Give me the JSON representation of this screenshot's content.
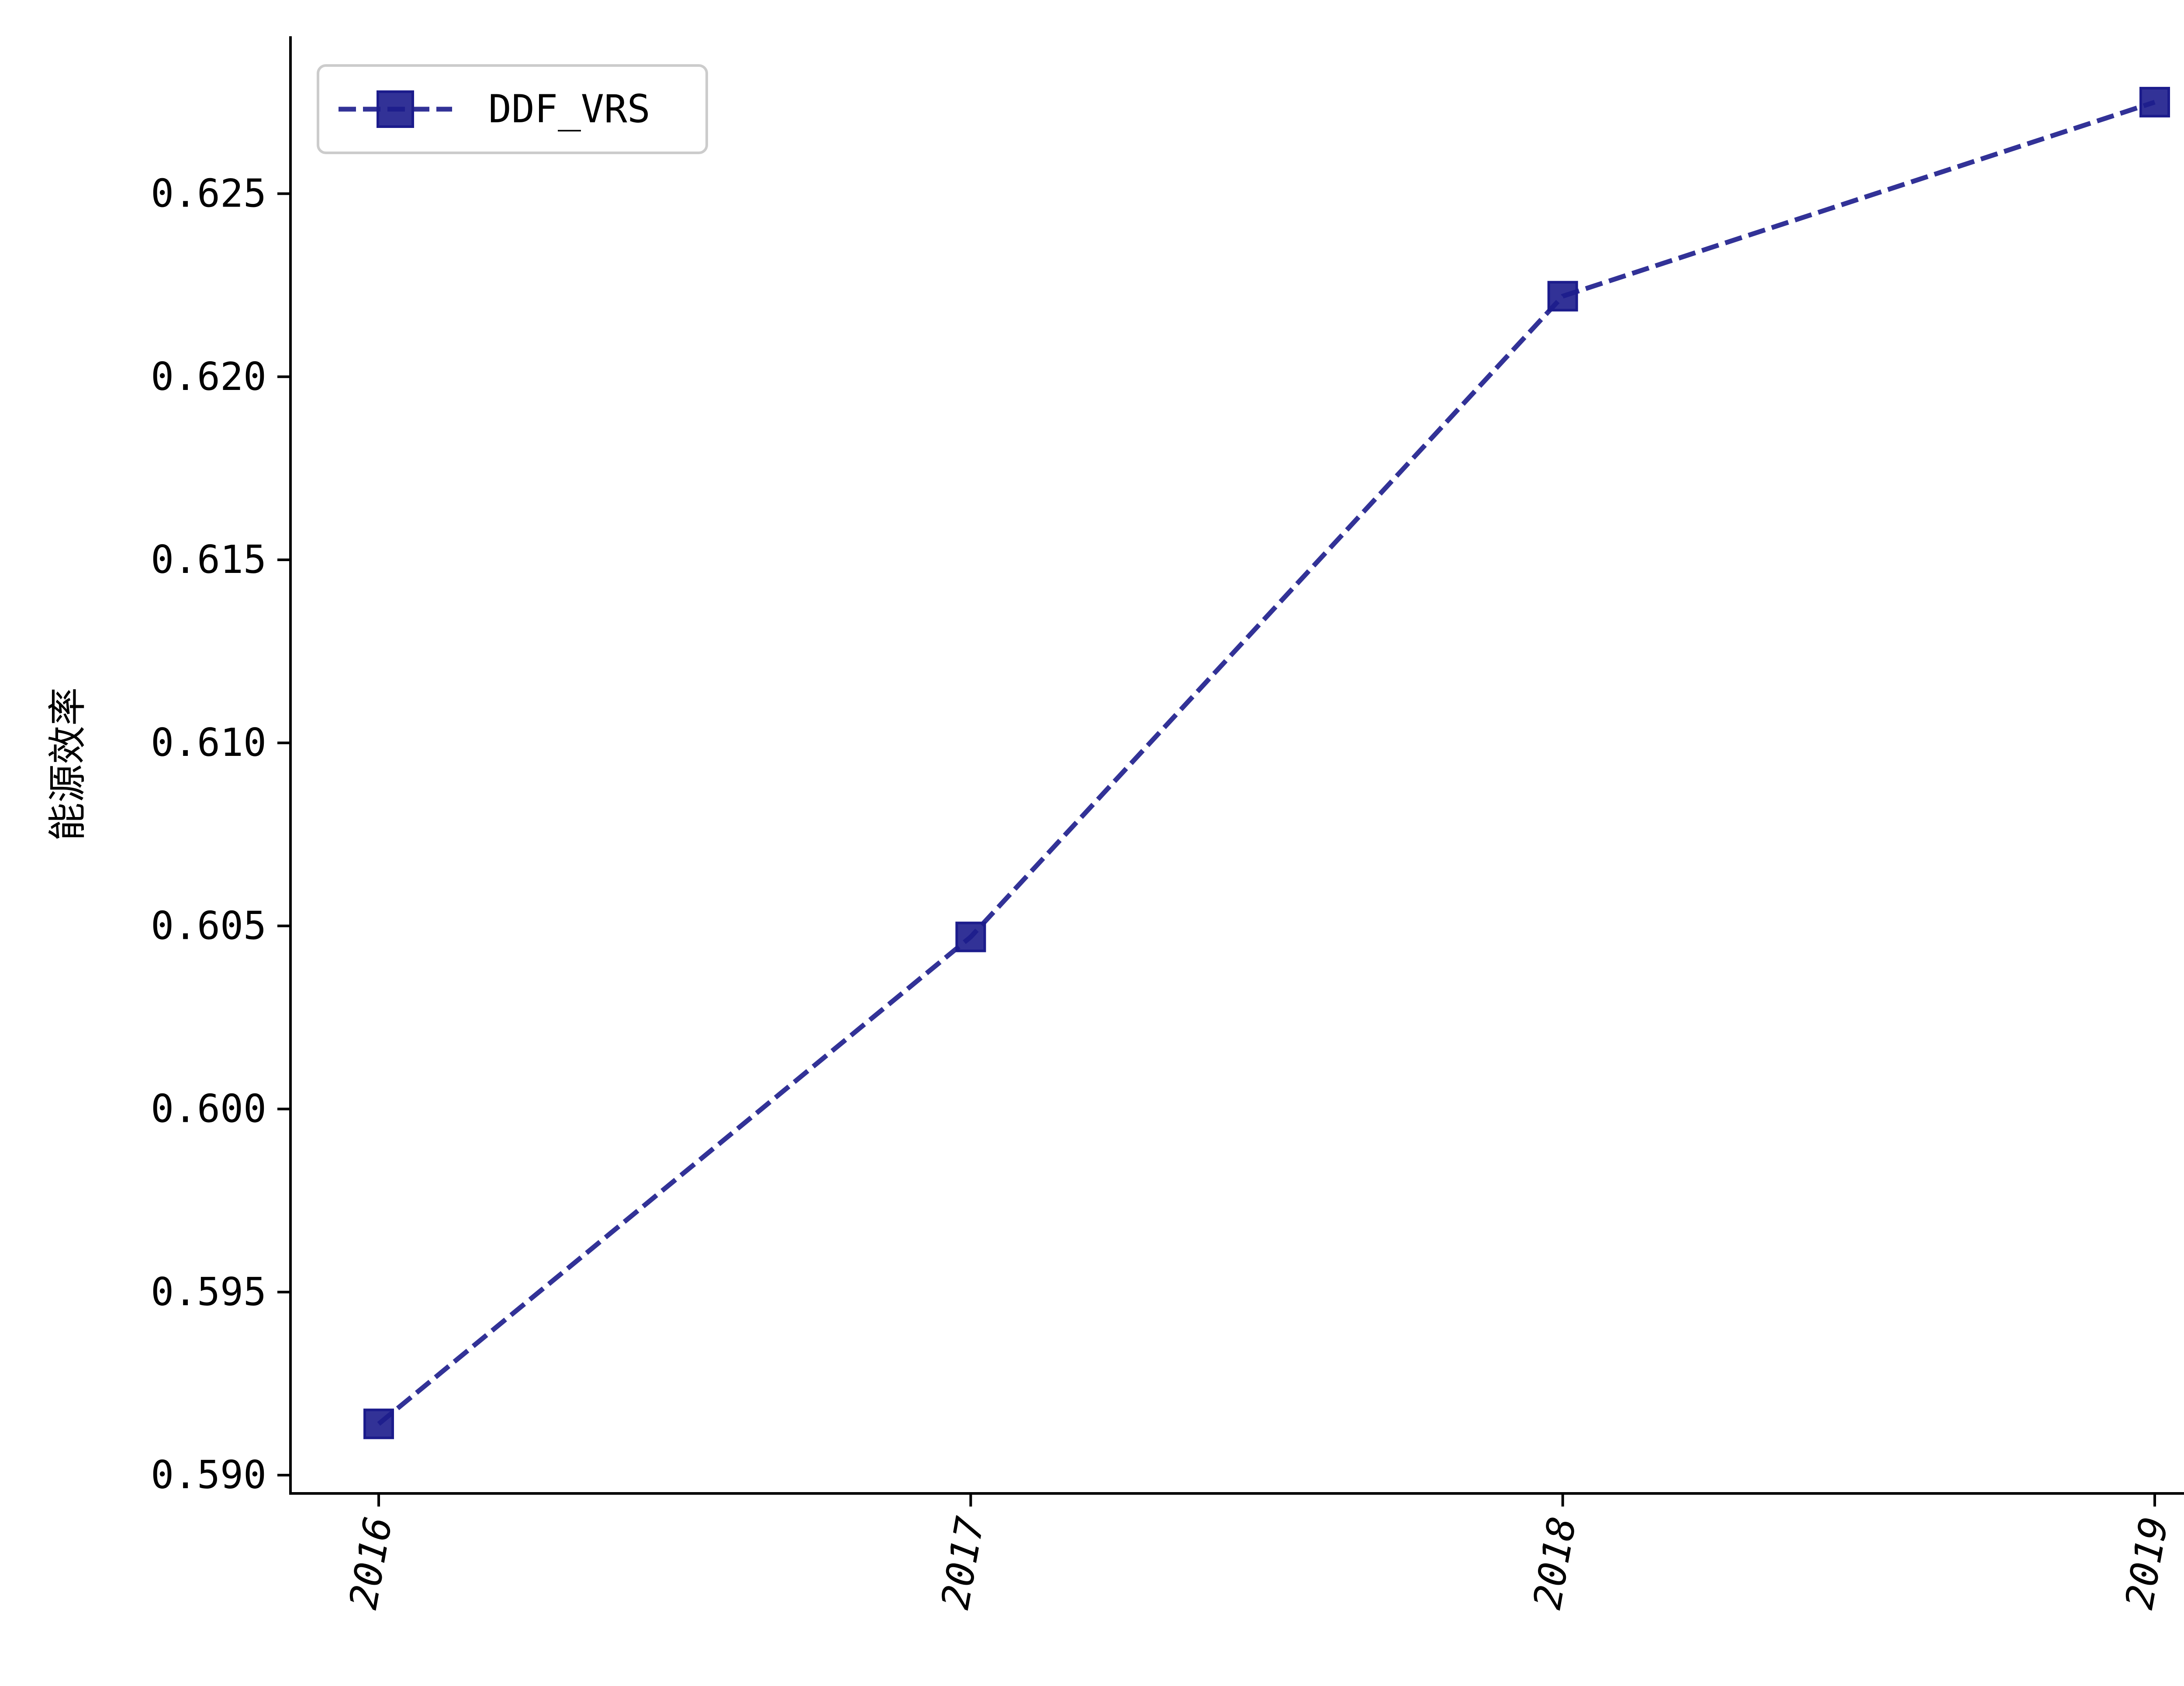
{
  "chart_data": {
    "type": "line",
    "title": "",
    "xlabel": "",
    "ylabel": "能源效率",
    "categories": [
      "2016",
      "2017",
      "2018",
      "2019"
    ],
    "series": [
      {
        "name": "DDF_VRS",
        "values": [
          0.5914,
          0.6047,
          0.6222,
          0.6275
        ],
        "color": "#1c1c8c",
        "line_style": "dashed",
        "marker": "square"
      }
    ],
    "ylim": [
      0.5895,
      0.6293
    ],
    "y_ticks": [
      0.59,
      0.595,
      0.6,
      0.605,
      0.61,
      0.615,
      0.62,
      0.625
    ],
    "y_tick_labels": [
      "0.590",
      "0.595",
      "0.600",
      "0.605",
      "0.610",
      "0.615",
      "0.620",
      "0.625"
    ],
    "x_tick_rotation": "vertical",
    "grid": false,
    "legend_position": "top-left"
  }
}
